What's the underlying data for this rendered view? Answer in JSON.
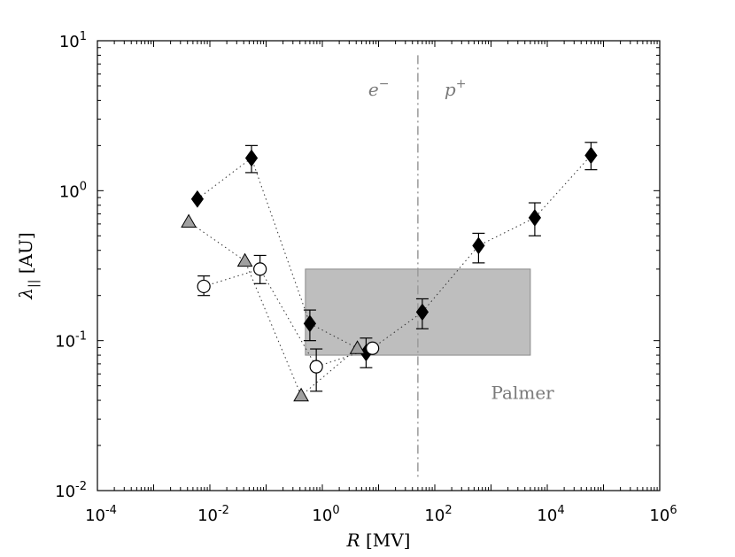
{
  "chart_data": {
    "type": "scatter",
    "title": "",
    "xlabel": "R [MV]",
    "ylabel": "λ|| [AU]",
    "xscale": "log",
    "yscale": "log",
    "xlim": [
      0.0001,
      1000000
    ],
    "ylim": [
      0.01,
      10
    ],
    "grid": false,
    "legend": "none",
    "x_ticks": [
      {
        "base": "10",
        "exp": "-4",
        "value": 0.0001
      },
      {
        "base": "10",
        "exp": "-2",
        "value": 0.01
      },
      {
        "base": "10",
        "exp": "0",
        "value": 1
      },
      {
        "base": "10",
        "exp": "2",
        "value": 100
      },
      {
        "base": "10",
        "exp": "4",
        "value": 10000
      },
      {
        "base": "10",
        "exp": "6",
        "value": 1000000
      }
    ],
    "y_ticks": [
      {
        "base": "10",
        "exp": "-2",
        "value": 0.01
      },
      {
        "base": "10",
        "exp": "-1",
        "value": 0.1
      },
      {
        "base": "10",
        "exp": "0",
        "value": 1
      },
      {
        "base": "10",
        "exp": "1",
        "value": 10
      }
    ],
    "series": [
      {
        "marker": "diamond",
        "color": "#000000",
        "points": [
          {
            "x": 0.006,
            "y": 0.88,
            "err": null
          },
          {
            "x": 0.055,
            "y": 1.65,
            "err": [
              1.32,
              2.0
            ]
          },
          {
            "x": 0.6,
            "y": 0.13,
            "err": [
              0.1,
              0.16
            ]
          },
          {
            "x": 6.0,
            "y": 0.083,
            "err": [
              0.066,
              0.104
            ]
          },
          {
            "x": 60,
            "y": 0.155,
            "err": [
              0.12,
              0.19
            ]
          },
          {
            "x": 600,
            "y": 0.43,
            "err": [
              0.33,
              0.52
            ]
          },
          {
            "x": 6000,
            "y": 0.66,
            "err": [
              0.5,
              0.83
            ]
          },
          {
            "x": 60000,
            "y": 1.72,
            "err": [
              1.38,
              2.1
            ]
          }
        ]
      },
      {
        "marker": "circle-open",
        "color": "#000000",
        "points": [
          {
            "x": 0.0078,
            "y": 0.23,
            "err": [
              0.2,
              0.27
            ]
          },
          {
            "x": 0.078,
            "y": 0.3,
            "err": [
              0.24,
              0.37
            ]
          },
          {
            "x": 0.78,
            "y": 0.067,
            "err": [
              0.046,
              0.088
            ]
          },
          {
            "x": 7.8,
            "y": 0.089,
            "err": null
          }
        ]
      },
      {
        "marker": "triangle",
        "color": "#a0a0a0",
        "points": [
          {
            "x": 0.0042,
            "y": 0.62,
            "err": null
          },
          {
            "x": 0.042,
            "y": 0.34,
            "err": null
          },
          {
            "x": 0.42,
            "y": 0.043,
            "err": null
          },
          {
            "x": 4.2,
            "y": 0.089,
            "err": null
          }
        ]
      }
    ],
    "shaded_region": {
      "x": [
        0.5,
        5000
      ],
      "y": [
        0.08,
        0.3
      ],
      "color": "#bebebe",
      "label": "Palmer"
    },
    "divider": {
      "x": 50,
      "y": [
        0.012,
        8.0
      ],
      "left_label": {
        "base": "e",
        "sup": "−"
      },
      "right_label": {
        "base": "p",
        "sup": "+"
      }
    }
  }
}
